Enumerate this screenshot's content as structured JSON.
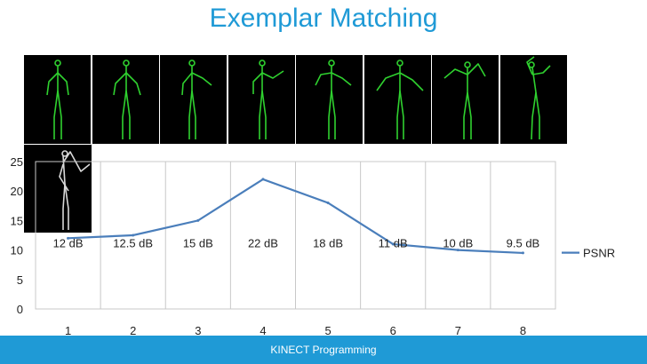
{
  "slide": {
    "title": "Exemplar Matching",
    "footer": "KINECT Programming",
    "accent_color": "#1f9ad6"
  },
  "thumbnails": {
    "background": "#000000",
    "skeleton_color": "#2fd12f",
    "query_skeleton_color": "#d8d8d8",
    "items": [
      {
        "pose": "standing-arms-down"
      },
      {
        "pose": "standing-arms-slightly-out"
      },
      {
        "pose": "right-arm-raised-to-side"
      },
      {
        "pose": "right-arm-raised-higher"
      },
      {
        "pose": "both-arms-raised-partly"
      },
      {
        "pose": "both-arms-raised-wide"
      },
      {
        "pose": "arms-raised-over-head"
      },
      {
        "pose": "arms-raised-leaning"
      }
    ],
    "query": {
      "pose": "query-gray-skeleton-arm-raised"
    }
  },
  "chart_data": {
    "type": "line",
    "x": [
      1,
      2,
      3,
      4,
      5,
      6,
      7,
      8
    ],
    "categories": [
      "1",
      "2",
      "3",
      "4",
      "5",
      "6",
      "7",
      "8"
    ],
    "series": [
      {
        "name": "PSNR",
        "values": [
          12,
          12.5,
          15,
          22,
          18,
          11,
          10,
          9.5
        ],
        "color": "#4a7ebb"
      }
    ],
    "data_labels": [
      "12 dB",
      "12.5 dB",
      "15 dB",
      "22 dB",
      "18 dB",
      "11 dB",
      "10 dB",
      "9.5 dB"
    ],
    "yticks": [
      "0",
      "5",
      "10",
      "15",
      "20",
      "25"
    ],
    "ylim": [
      0,
      25
    ],
    "grid": "vertical",
    "legend": "right",
    "title": "",
    "xlabel": "",
    "ylabel": ""
  }
}
